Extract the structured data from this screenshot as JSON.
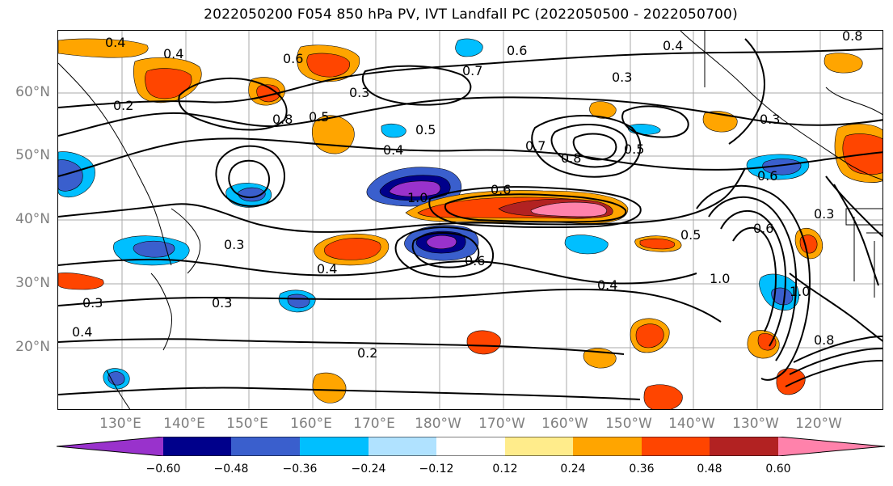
{
  "title": "2022050200 F054 850 hPa PV, IVT Landfall PC (2022050500 - 2022050700)",
  "lat_labels": [
    "60°N",
    "50°N",
    "40°N",
    "30°N",
    "20°N"
  ],
  "lon_labels": [
    "130°E",
    "140°E",
    "150°E",
    "160°E",
    "170°E",
    "180°W",
    "170°W",
    "160°W",
    "150°W",
    "140°W",
    "130°W",
    "120°W"
  ],
  "contour_labels": [
    "0.4",
    "0.2",
    "0.6",
    "0.5",
    "0.3",
    "0.8",
    "0.7",
    "0.6",
    "0.5",
    "0.4",
    "0.8",
    "0.7",
    "1.0",
    "0.6",
    "0.3",
    "0.4",
    "0.3",
    "0.4",
    "0.2",
    "0.6",
    "0.4",
    "1.0",
    "0.8",
    "1.0",
    "0.3",
    "0.6",
    "0.5",
    "0.6",
    "0.3",
    "0.4",
    "0.8",
    "0.3",
    "0.5",
    "0.3",
    "0.4"
  ],
  "colorbar": {
    "ticks": [
      "−0.60",
      "−0.48",
      "−0.36",
      "−0.24",
      "−0.12",
      "0.12",
      "0.24",
      "0.36",
      "0.48",
      "0.60"
    ],
    "colors": [
      "#9932cc",
      "#00008b",
      "#3a5fcd",
      "#00bfff",
      "#b0e2ff",
      "#ffffff",
      "#ffec8b",
      "#ffa500",
      "#ff4500",
      "#b22222",
      "#ff82ab"
    ]
  }
}
